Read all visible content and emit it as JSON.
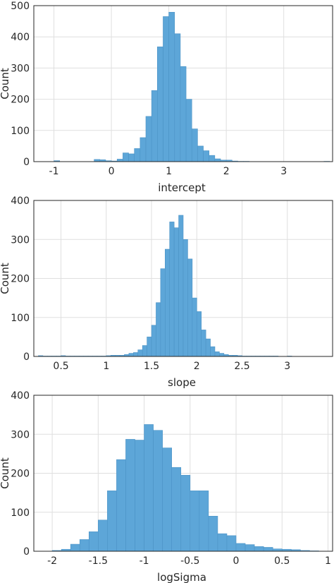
{
  "chart_data": [
    {
      "type": "bar",
      "histogram": true,
      "xlabel": "intercept",
      "ylabel": "Count",
      "xlim": [
        -1.35,
        3.85
      ],
      "ylim": [
        0,
        500
      ],
      "xticks": [
        -1,
        0,
        1,
        2,
        3
      ],
      "yticks": [
        0,
        100,
        200,
        300,
        400,
        500
      ],
      "grid": true,
      "bin_width": 0.1,
      "bin_edges_start": -1.0,
      "counts": [
        3,
        0,
        0,
        0,
        0,
        0,
        0,
        7,
        6,
        3,
        2,
        8,
        28,
        25,
        42,
        77,
        145,
        228,
        368,
        465,
        479,
        410,
        305,
        200,
        105,
        50,
        35,
        20,
        9,
        5,
        5,
        2,
        1,
        1,
        0,
        0,
        0,
        0,
        0,
        0,
        0,
        0,
        0,
        0,
        0,
        0,
        0,
        1
      ]
    },
    {
      "type": "bar",
      "histogram": true,
      "xlabel": "slope",
      "ylabel": "Count",
      "xlim": [
        0.2,
        3.5
      ],
      "ylim": [
        0,
        400
      ],
      "xticks": [
        0.5,
        1,
        1.5,
        2,
        2.5,
        3
      ],
      "xtick_labels": [
        "0.5",
        "1",
        "1.5",
        "2",
        "2.5",
        "3"
      ],
      "yticks": [
        0,
        100,
        200,
        300,
        400
      ],
      "grid": true,
      "bin_width": 0.05,
      "bin_edges_start": 0.25,
      "counts": [
        2,
        1,
        1,
        1,
        1,
        2,
        1,
        1,
        1,
        1,
        1,
        1,
        1,
        1,
        1,
        2,
        3,
        3,
        3,
        5,
        8,
        10,
        17,
        28,
        50,
        80,
        138,
        225,
        275,
        345,
        330,
        362,
        300,
        250,
        150,
        115,
        68,
        45,
        25,
        12,
        8,
        5,
        3,
        3,
        2,
        1,
        1,
        1,
        1,
        1,
        1,
        1,
        1,
        0,
        0,
        1
      ]
    },
    {
      "type": "bar",
      "histogram": true,
      "xlabel": "logSigma",
      "ylabel": "Count",
      "xlim": [
        -2.2,
        1.05
      ],
      "ylim": [
        0,
        400
      ],
      "xticks": [
        -2,
        -1.5,
        -1,
        -0.5,
        0,
        0.5,
        1
      ],
      "xtick_labels": [
        "-2",
        "-1.5",
        "-1",
        "-0.5",
        "0",
        "0.5",
        "1"
      ],
      "yticks": [
        0,
        100,
        200,
        300,
        400
      ],
      "grid": true,
      "bin_width": 0.1,
      "bin_edges_start": -2.0,
      "counts": [
        2,
        5,
        18,
        30,
        50,
        80,
        155,
        235,
        287,
        285,
        325,
        310,
        265,
        215,
        195,
        155,
        155,
        90,
        45,
        40,
        20,
        17,
        12,
        10,
        6,
        5,
        4,
        2,
        1
      ]
    }
  ]
}
